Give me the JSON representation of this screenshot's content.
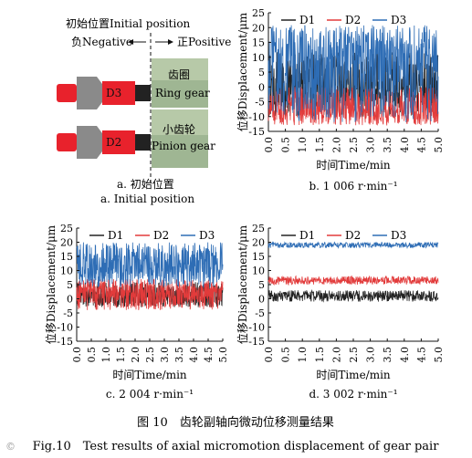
{
  "figure": {
    "caption_cn": "图 10　齿轮副轴向微动位移测量结果",
    "caption_en": "Fig.10　Test results of axial micromotion displacement of gear pair",
    "watermark": "©"
  },
  "panel_a": {
    "title_top": "初始位置Initial position",
    "negative_label": "负Negative",
    "positive_label": "正Positive",
    "sensor_top": "D3",
    "sensor_bottom": "D2",
    "ring_gear_cn": "齿圈",
    "ring_gear_en": "Ring gear",
    "pinion_cn": "小齿轮",
    "pinion_en": "Pinion gear",
    "caption_cn": "a. 初始位置",
    "caption_en": "a. Initial position",
    "colors": {
      "sensor_body": "#e8222c",
      "nut": "#8a8a8a",
      "gear_block": "#b7c9a8",
      "tip": "#222222"
    }
  },
  "panels": [
    {
      "caption": "b. 1 006 r·min⁻¹"
    },
    {
      "caption": "c. 2 004 r·min⁻¹"
    },
    {
      "caption": "d. 3 002 r·min⁻¹"
    }
  ],
  "chart_data": [
    {
      "type": "line",
      "xlabel": "时间Time/min",
      "ylabel": "位移Displacement/μm",
      "xlim": [
        0,
        5
      ],
      "ylim": [
        -15,
        25
      ],
      "xticks": [
        "0.0",
        "0.5",
        "1.0",
        "1.5",
        "2.0",
        "2.5",
        "3.0",
        "3.5",
        "4.0",
        "4.5",
        "5.0"
      ],
      "yticks": [
        "25",
        "20",
        "15",
        "10",
        "5",
        "0",
        "-5",
        "-10",
        "-15"
      ],
      "legend_position": "top",
      "series": [
        {
          "name": "D1",
          "color": "#222222",
          "min": -10,
          "max": 12,
          "mean": 0
        },
        {
          "name": "D2",
          "color": "#e23b3b",
          "min": -13,
          "max": 0,
          "mean": -8
        },
        {
          "name": "D3",
          "color": "#2e6db5",
          "min": -12,
          "max": 21,
          "mean": 10
        }
      ]
    },
    {
      "type": "line",
      "xlabel": "时间Time/min",
      "ylabel": "位移Displacement/μm",
      "xlim": [
        0,
        5
      ],
      "ylim": [
        -15,
        25
      ],
      "xticks": [
        "0.0",
        "0.5",
        "1.0",
        "1.5",
        "2.0",
        "2.5",
        "3.0",
        "3.5",
        "4.0",
        "4.5",
        "5.0"
      ],
      "yticks": [
        "25",
        "20",
        "15",
        "10",
        "5",
        "0",
        "-5",
        "-10",
        "-15"
      ],
      "legend_position": "top",
      "series": [
        {
          "name": "D1",
          "color": "#222222",
          "min": -3,
          "max": 6,
          "mean": 1
        },
        {
          "name": "D2",
          "color": "#e23b3b",
          "min": -4,
          "max": 7,
          "mean": 2
        },
        {
          "name": "D3",
          "color": "#2e6db5",
          "min": 4,
          "max": 20,
          "mean": 12
        }
      ]
    },
    {
      "type": "line",
      "xlabel": "时间Time/min",
      "ylabel": "位移Displacement/μm",
      "xlim": [
        0,
        5
      ],
      "ylim": [
        -15,
        25
      ],
      "xticks": [
        "0.0",
        "0.5",
        "1.0",
        "1.5",
        "2.0",
        "2.5",
        "3.0",
        "3.5",
        "4.0",
        "4.5",
        "5.0"
      ],
      "yticks": [
        "25",
        "20",
        "15",
        "10",
        "5",
        "0",
        "-5",
        "-10",
        "-15"
      ],
      "legend_position": "top",
      "series": [
        {
          "name": "D1",
          "color": "#222222",
          "min": -1,
          "max": 3,
          "mean": 1
        },
        {
          "name": "D2",
          "color": "#e23b3b",
          "min": 5,
          "max": 8,
          "mean": 6.5
        },
        {
          "name": "D3",
          "color": "#2e6db5",
          "min": 18,
          "max": 20,
          "mean": 19
        }
      ]
    }
  ]
}
